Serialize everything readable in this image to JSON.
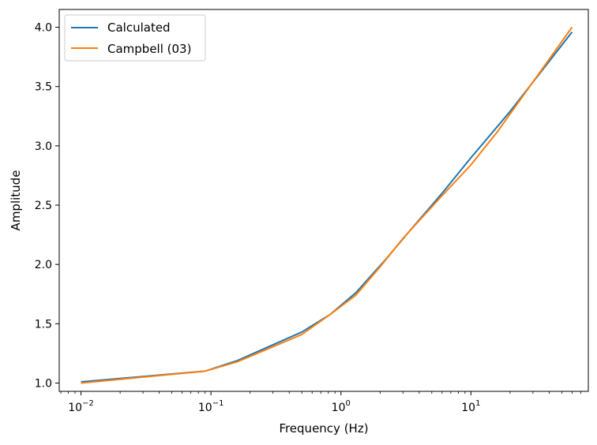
{
  "chart_data": {
    "type": "line",
    "title": "",
    "xlabel": "Frequency (Hz)",
    "ylabel": "Amplitude",
    "xscale": "log",
    "xlim": [
      0.0068,
      80
    ],
    "ylim": [
      0.93,
      4.15
    ],
    "grid": false,
    "legend_position": "top-left",
    "x_ticks": [
      {
        "value": 0.01,
        "base": "10",
        "exp": "−2"
      },
      {
        "value": 0.1,
        "base": "10",
        "exp": "−1"
      },
      {
        "value": 1,
        "base": "10",
        "exp": "0"
      },
      {
        "value": 10,
        "base": "10",
        "exp": "1"
      }
    ],
    "y_ticks": [
      {
        "value": 1.0,
        "label": "1.0"
      },
      {
        "value": 1.5,
        "label": "1.5"
      },
      {
        "value": 2.0,
        "label": "2.0"
      },
      {
        "value": 2.5,
        "label": "2.5"
      },
      {
        "value": 3.0,
        "label": "3.0"
      },
      {
        "value": 3.5,
        "label": "3.5"
      },
      {
        "value": 4.0,
        "label": "4.0"
      }
    ],
    "series": [
      {
        "name": "Calculated",
        "color": "#1f77b4",
        "x": [
          0.01,
          0.09,
          0.16,
          0.5,
          0.83,
          1.3,
          2.2,
          3.3,
          6,
          10,
          20,
          60
        ],
        "y": [
          1.01,
          1.1,
          1.19,
          1.43,
          1.58,
          1.76,
          2.04,
          2.27,
          2.6,
          2.9,
          3.29,
          3.96
        ]
      },
      {
        "name": "Campbell (03)",
        "color": "#ff7f0e",
        "x": [
          0.01,
          0.09,
          0.16,
          0.5,
          0.83,
          1.3,
          2.0,
          3.0,
          6,
          10,
          16,
          60
        ],
        "y": [
          1.0,
          1.1,
          1.18,
          1.41,
          1.58,
          1.74,
          1.98,
          2.22,
          2.58,
          2.84,
          3.12,
          4.0
        ]
      }
    ]
  }
}
